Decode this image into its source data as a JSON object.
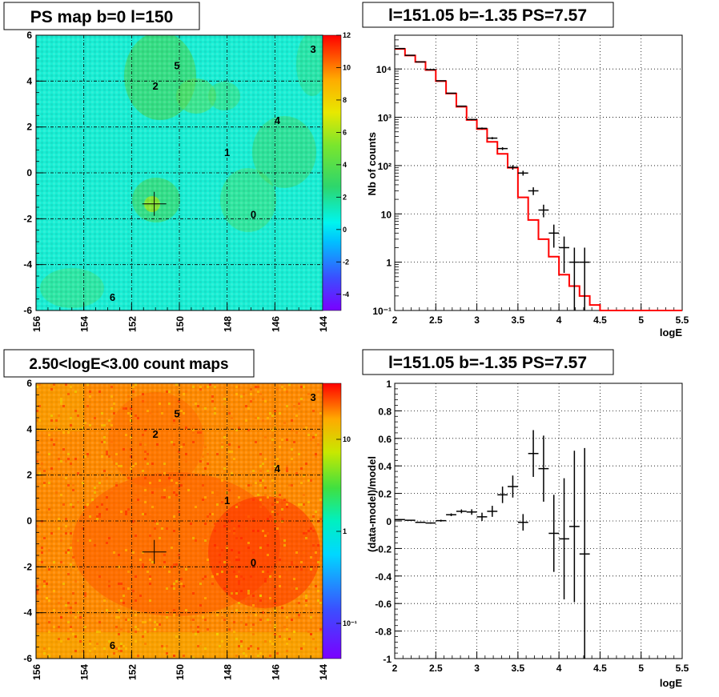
{
  "chart_data": [
    {
      "type": "heatmap",
      "title": "PS map b=0 l=150",
      "x_ticks": [
        156,
        154,
        152,
        150,
        148,
        146,
        144
      ],
      "y_ticks": [
        6,
        4,
        2,
        0,
        -2,
        -4,
        -6
      ],
      "xlim": [
        156,
        144
      ],
      "ylim": [
        -6,
        6
      ],
      "palette_ticks": [
        12,
        10,
        8,
        6,
        4,
        2,
        0,
        -2,
        -4
      ],
      "palette_range": [
        -5,
        12
      ],
      "sources": [
        {
          "id": "0",
          "l": 146.9,
          "b": -1.8
        },
        {
          "id": "1",
          "l": 148.0,
          "b": 0.9
        },
        {
          "id": "2",
          "l": 151.0,
          "b": 3.8
        },
        {
          "id": "3",
          "l": 144.4,
          "b": 5.4
        },
        {
          "id": "4",
          "l": 145.9,
          "b": 2.3
        },
        {
          "id": "5",
          "l": 150.1,
          "b": 4.7
        },
        {
          "id": "6",
          "l": 152.8,
          "b": -5.4
        }
      ],
      "marker": {
        "l": 151.05,
        "b": -1.35
      },
      "grid": true
    },
    {
      "type": "line",
      "title": "l=151.05 b=-1.35 PS=7.57",
      "xlabel": "logE",
      "ylabel": "Nb of counts",
      "y_scale": "log",
      "xlim": [
        2,
        5.5
      ],
      "ylim": [
        0.1,
        50000
      ],
      "x_ticks": [
        "2",
        "2.5",
        "3",
        "3.5",
        "4",
        "4.5",
        "5",
        "5.5"
      ],
      "y_ticks": [
        "10⁻¹",
        "1",
        "10",
        "10²",
        "10³",
        "10⁴"
      ],
      "bin_width": 0.125,
      "model_edges": [
        2,
        2.125,
        2.25,
        2.375,
        2.5,
        2.625,
        2.75,
        2.875,
        3,
        3.125,
        3.25,
        3.375,
        3.5,
        3.625,
        3.75,
        3.875,
        4,
        4.125,
        4.25,
        4.375,
        4.5,
        5.5
      ],
      "model_values": [
        26000,
        19000,
        14000,
        9500,
        5600,
        3100,
        1650,
        880,
        570,
        310,
        175,
        90,
        22,
        7.5,
        3.0,
        1.3,
        0.55,
        0.32,
        0.2,
        0.13,
        0.1
      ],
      "data_points": [
        {
          "x": 2.0625,
          "y": 26500,
          "err_lo": 160,
          "err_hi": 160
        },
        {
          "x": 2.1875,
          "y": 19200,
          "err_lo": 140,
          "err_hi": 140
        },
        {
          "x": 2.3125,
          "y": 14000,
          "err_lo": 120,
          "err_hi": 120
        },
        {
          "x": 2.4375,
          "y": 9700,
          "err_lo": 100,
          "err_hi": 100
        },
        {
          "x": 2.5625,
          "y": 5700,
          "err_lo": 75,
          "err_hi": 75
        },
        {
          "x": 2.6875,
          "y": 3150,
          "err_lo": 56,
          "err_hi": 56
        },
        {
          "x": 2.8125,
          "y": 1700,
          "err_lo": 41,
          "err_hi": 41
        },
        {
          "x": 2.9375,
          "y": 900,
          "err_lo": 30,
          "err_hi": 30
        },
        {
          "x": 3.0625,
          "y": 590,
          "err_lo": 24,
          "err_hi": 24
        },
        {
          "x": 3.1875,
          "y": 370,
          "err_lo": 19,
          "err_hi": 19
        },
        {
          "x": 3.3125,
          "y": 225,
          "err_lo": 15,
          "err_hi": 15
        },
        {
          "x": 3.4375,
          "y": 92,
          "err_lo": 10,
          "err_hi": 10
        },
        {
          "x": 3.5625,
          "y": 70,
          "err_lo": 8,
          "err_hi": 8
        },
        {
          "x": 3.6875,
          "y": 30,
          "err_lo": 5.5,
          "err_hi": 5.5
        },
        {
          "x": 3.8125,
          "y": 12,
          "err_lo": 3.5,
          "err_hi": 3.5
        },
        {
          "x": 3.9375,
          "y": 4,
          "err_lo": 2,
          "err_hi": 2
        },
        {
          "x": 4.0625,
          "y": 2,
          "err_lo": 1.4,
          "err_hi": 1.4
        },
        {
          "x": 4.1875,
          "y": 1,
          "err_lo": 1,
          "err_hi": 1
        },
        {
          "x": 4.3125,
          "y": 1,
          "err_lo": 1,
          "err_hi": 1
        }
      ],
      "grid": true
    },
    {
      "type": "heatmap",
      "title": "2.50<logE<3.00 count maps",
      "x_ticks": [
        156,
        154,
        152,
        150,
        148,
        146,
        144
      ],
      "y_ticks": [
        6,
        4,
        2,
        0,
        -2,
        -4,
        -6
      ],
      "xlim": [
        156,
        144
      ],
      "ylim": [
        -6,
        6
      ],
      "palette_ticks": [
        "10",
        "1",
        "10⁻¹"
      ],
      "palette_scale": "log",
      "marker": {
        "l": 151.05,
        "b": -1.35
      },
      "grid": true
    },
    {
      "type": "scatter",
      "title": "l=151.05 b=-1.35 PS=7.57",
      "xlabel": "logE",
      "ylabel": "(data-model)/model",
      "xlim": [
        2,
        5.5
      ],
      "ylim": [
        -1,
        1
      ],
      "x_ticks": [
        "2",
        "2.5",
        "3",
        "3.5",
        "4",
        "4.5",
        "5",
        "5.5"
      ],
      "y_ticks": [
        "1",
        "0.8",
        "0.6",
        "0.4",
        "0.2",
        "0",
        "-0.2",
        "-0.4",
        "-0.6",
        "-0.8",
        "-1"
      ],
      "x_half_width": 0.0625,
      "points": [
        {
          "x": 2.0625,
          "y": 0.01,
          "err": 0.003
        },
        {
          "x": 2.1875,
          "y": 0.005,
          "err": 0.003
        },
        {
          "x": 2.3125,
          "y": -0.01,
          "err": 0.004
        },
        {
          "x": 2.4375,
          "y": -0.015,
          "err": 0.005
        },
        {
          "x": 2.5625,
          "y": 0.002,
          "err": 0.007
        },
        {
          "x": 2.6875,
          "y": 0.045,
          "err": 0.01
        },
        {
          "x": 2.8125,
          "y": 0.07,
          "err": 0.014
        },
        {
          "x": 2.9375,
          "y": 0.065,
          "err": 0.02
        },
        {
          "x": 3.0625,
          "y": 0.03,
          "err": 0.03
        },
        {
          "x": 3.1875,
          "y": 0.07,
          "err": 0.04
        },
        {
          "x": 3.3125,
          "y": 0.19,
          "err": 0.06
        },
        {
          "x": 3.4375,
          "y": 0.25,
          "err": 0.08
        },
        {
          "x": 3.5625,
          "y": -0.01,
          "err": 0.06
        },
        {
          "x": 3.6875,
          "y": 0.49,
          "err": 0.17
        },
        {
          "x": 3.8125,
          "y": 0.38,
          "err": 0.24
        },
        {
          "x": 3.9375,
          "y": -0.09,
          "err": 0.28
        },
        {
          "x": 4.0625,
          "y": -0.13,
          "err": 0.44
        },
        {
          "x": 4.1875,
          "y": -0.04,
          "err": 0.55
        },
        {
          "x": 4.3125,
          "y": -0.24,
          "err": 0.77
        }
      ],
      "grid": true
    }
  ]
}
